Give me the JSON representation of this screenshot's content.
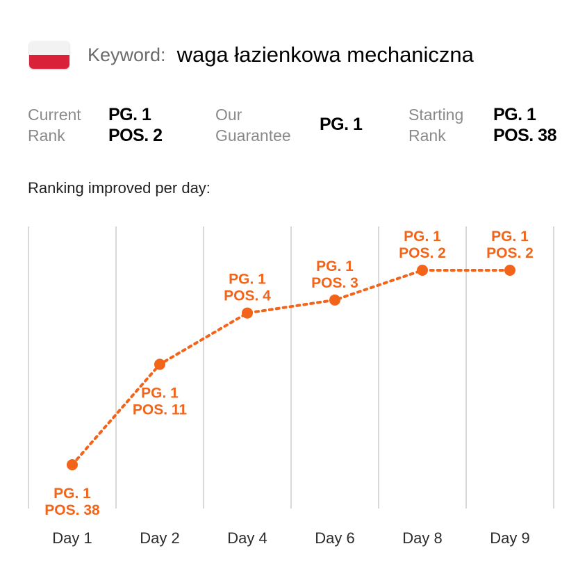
{
  "header": {
    "flag_icon": "poland-flag-icon",
    "keyword_label": "Keyword:",
    "keyword_value": "waga łazienkowa mechaniczna"
  },
  "stats": {
    "current": {
      "label_line1": "Current",
      "label_line2": "Rank",
      "value_line1": "PG. 1",
      "value_line2": "POS. 2"
    },
    "guarantee": {
      "label_line1": "Our",
      "label_line2": "Guarantee",
      "value": "PG. 1"
    },
    "starting": {
      "label_line1": "Starting",
      "label_line2": "Rank",
      "value_line1": "PG. 1",
      "value_line2": "POS. 38"
    }
  },
  "subtitle": "Ranking improved per day:",
  "colors": {
    "accent": "#f26419",
    "grid": "#d9d9d9",
    "label_gray": "#8a8a8a"
  },
  "chart_data": {
    "type": "line",
    "categories": [
      "Day 1",
      "Day 2",
      "Day 4",
      "Day 6",
      "Day 8",
      "Day 9"
    ],
    "series": [
      {
        "values": [
          38,
          11,
          4,
          3,
          2,
          2
        ],
        "pages": [
          1,
          1,
          1,
          1,
          1,
          1
        ],
        "labels": [
          [
            "PG. 1",
            "POS. 38"
          ],
          [
            "PG. 1",
            "POS. 11"
          ],
          [
            "PG. 1",
            "POS. 4"
          ],
          [
            "PG. 1",
            "POS. 3"
          ],
          [
            "PG. 1",
            "POS. 2"
          ],
          [
            "PG. 1",
            "POS. 2"
          ]
        ]
      }
    ],
    "y_axis": "rank position (lower is better, higher on chart)",
    "line_style": "dotted",
    "grid": "vertical"
  }
}
